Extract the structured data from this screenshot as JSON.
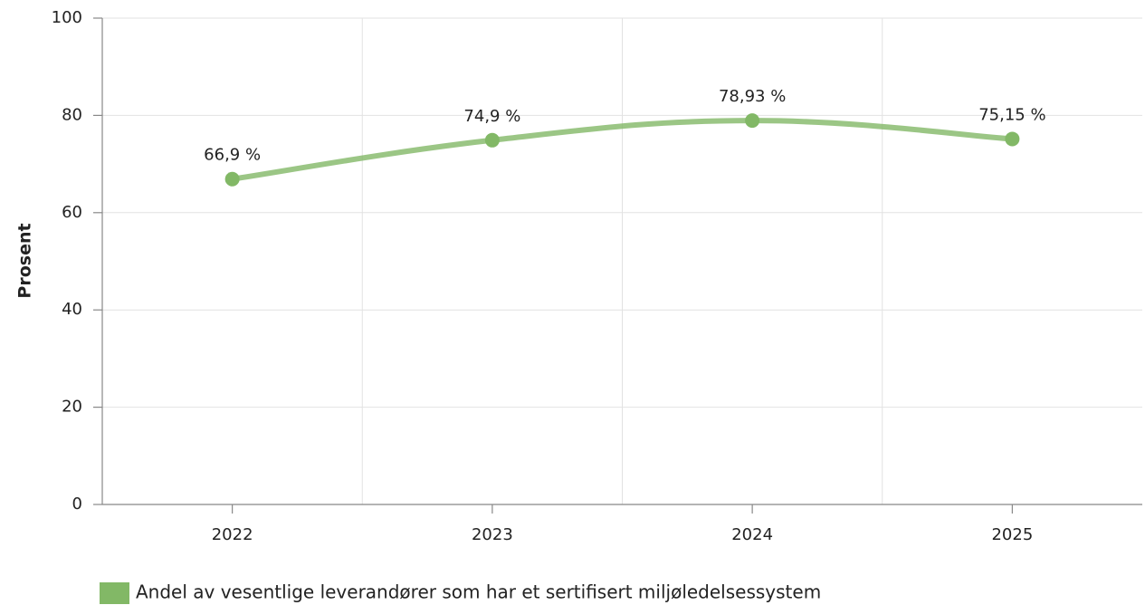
{
  "chart_data": {
    "type": "line",
    "y_label": "Prosent",
    "categories": [
      "2022",
      "2023",
      "2024",
      "2025"
    ],
    "series": [
      {
        "name": "Andel av vesentlige leverandører som har et sertifisert miljøledelsessystem",
        "color": "#82b866",
        "values": [
          66.9,
          74.9,
          78.93,
          75.15
        ],
        "value_labels": [
          "66,9 %",
          "74,9 %",
          "78,93 %",
          "75,15 %"
        ]
      }
    ],
    "ylim": [
      0,
      100
    ],
    "yticks": [
      0,
      20,
      40,
      60,
      80,
      100
    ],
    "grid": true,
    "legend": "bottom-left"
  }
}
